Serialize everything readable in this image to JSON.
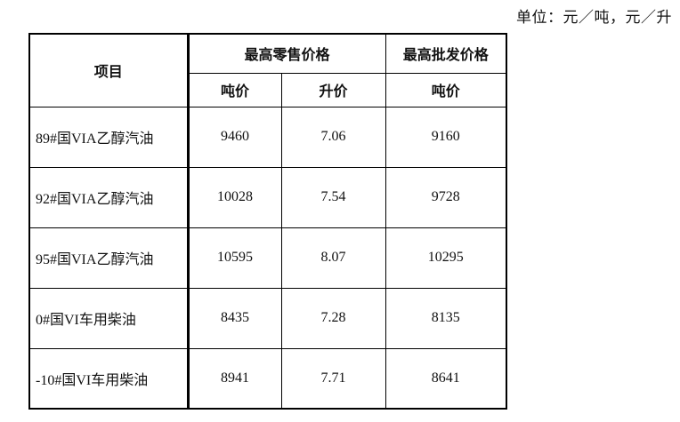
{
  "unit_label": "单位：元／吨，元／升",
  "table": {
    "headers": {
      "item": "项目",
      "retail_group": "最高零售价格",
      "wholesale_group": "最高批发价格",
      "retail_ton": "吨价",
      "retail_liter": "升价",
      "wholesale_ton": "吨价"
    },
    "rows": [
      {
        "item": "89#国VIA乙醇汽油",
        "retail_ton": "9460",
        "retail_liter": "7.06",
        "wholesale_ton": "9160"
      },
      {
        "item": "92#国VIA乙醇汽油",
        "retail_ton": "10028",
        "retail_liter": "7.54",
        "wholesale_ton": "9728"
      },
      {
        "item": "95#国VIA乙醇汽油",
        "retail_ton": "10595",
        "retail_liter": "8.07",
        "wholesale_ton": "10295"
      },
      {
        "item": "0#国VI车用柴油",
        "retail_ton": "8435",
        "retail_liter": "7.28",
        "wholesale_ton": "8135"
      },
      {
        "item": "-10#国VI车用柴油",
        "retail_ton": "8941",
        "retail_liter": "7.71",
        "wholesale_ton": "8641"
      }
    ]
  }
}
